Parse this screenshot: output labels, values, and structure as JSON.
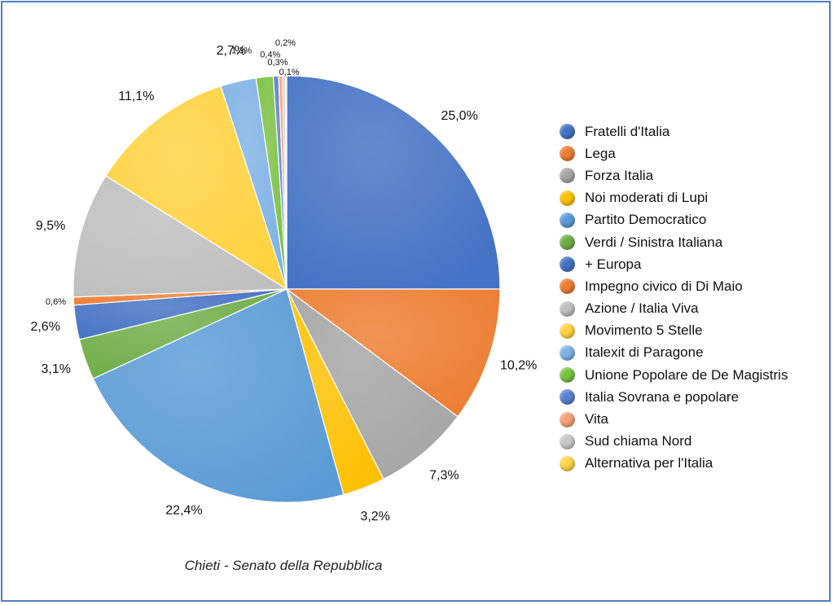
{
  "chart_data": {
    "type": "pie",
    "caption": "Chieti - Senato della Repubblica",
    "legend_position": "right",
    "slices": [
      {
        "name": "Fratelli d'Italia",
        "value": 25.0,
        "label": "25,0%",
        "color": "#4472c4"
      },
      {
        "name": "Lega",
        "value": 10.2,
        "label": "10,2%",
        "color": "#ed7d31"
      },
      {
        "name": "Forza Italia",
        "value": 7.3,
        "label": "7,3%",
        "color": "#a5a5a5"
      },
      {
        "name": "Noi moderati di Lupi",
        "value": 3.2,
        "label": "3,2%",
        "color": "#ffc000"
      },
      {
        "name": "Partito Democratico",
        "value": 22.4,
        "label": "22,4%",
        "color": "#5b9bd5"
      },
      {
        "name": "Verdi / Sinistra Italiana",
        "value": 3.1,
        "label": "3,1%",
        "color": "#70ad47"
      },
      {
        "name": "+ Europa",
        "value": 2.6,
        "label": "2,6%",
        "color": "#4472c4"
      },
      {
        "name": "Impegno civico di Di Maio",
        "value": 0.6,
        "label": "0,6%",
        "color": "#ed7d31"
      },
      {
        "name": "Azione / Italia Viva",
        "value": 9.5,
        "label": "9,5%",
        "color": "#bfbfbf"
      },
      {
        "name": "Movimento 5 Stelle",
        "value": 11.1,
        "label": "11,1%",
        "color": "#ffd23f"
      },
      {
        "name": "Italexit di Paragone",
        "value": 2.7,
        "label": "2,7%",
        "color": "#7fb2e5"
      },
      {
        "name": "Unione Popolare de De Magistris",
        "value": 1.3,
        "label": "1,3%",
        "color": "#7ac143"
      },
      {
        "name": "Italia Sovrana e popolare",
        "value": 0.4,
        "label": "0,4%",
        "color": "#5a7fd0"
      },
      {
        "name": "Vita",
        "value": 0.3,
        "label": "0,3%",
        "color": "#f4a27a"
      },
      {
        "name": "Sud chiama Nord",
        "value": 0.2,
        "label": "0,2%",
        "color": "#c8c8c8"
      },
      {
        "name": "Alternativa per l'Italia",
        "value": 0.1,
        "label": "0,1%",
        "color": "#ffd54a"
      }
    ]
  }
}
